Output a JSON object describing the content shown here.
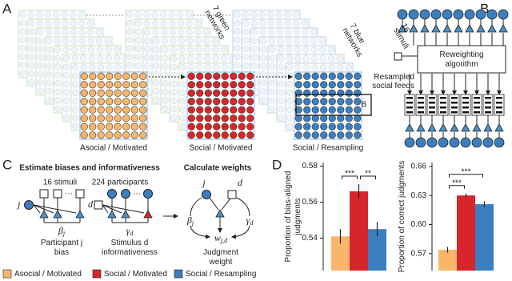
{
  "panel_labels": [
    "A",
    "B",
    "C",
    "D"
  ],
  "panel_a": {
    "conditions": [
      "Asocial / Motivated",
      "Social / Motivated",
      "Social / Resampling"
    ],
    "green_networks": [
      "7 green",
      "networks"
    ],
    "blue_networks": [
      "7 blue",
      "networks"
    ],
    "inset_label": "B"
  },
  "panel_b": {
    "stimuli": [
      "16",
      "stimuli"
    ],
    "algorithm": [
      "Reweighting",
      "algorithm"
    ],
    "feeds": [
      "Resampled",
      "social feeds"
    ]
  },
  "panel_c": {
    "headings": [
      "Estimate biases and informativeness",
      "Calculate weights"
    ],
    "counts": [
      "16 stimuli",
      "224 participants"
    ],
    "nodes": [
      "j",
      "d",
      "j",
      "d"
    ],
    "ellipsis": [
      "···",
      "···"
    ],
    "symbols": [
      {
        "base": "β",
        "sub": "j"
      },
      {
        "base": "γ",
        "sub": "d"
      },
      {
        "base": "β",
        "sub": "j"
      },
      {
        "base": "γ",
        "sub": "d"
      },
      {
        "base": "w",
        "sub": "j,d"
      }
    ],
    "captions": [
      [
        "Participant j",
        "bias"
      ],
      [
        "Stimulus d",
        "informativeness"
      ],
      [
        "Judgment",
        "weight"
      ]
    ]
  },
  "legend": [
    {
      "name": "Asocial / Motivated",
      "color": "#f9b66a"
    },
    {
      "name": "Social / Motivated",
      "color": "#d7262b"
    },
    {
      "name": "Social / Resampling",
      "color": "#3b7fbf"
    }
  ],
  "chart_data": [
    {
      "type": "bar",
      "ylabel": [
        "Proportion of bias-aligned",
        "judgments"
      ],
      "categories": [
        null,
        null,
        null
      ],
      "values": [
        0.541,
        0.566,
        0.545
      ],
      "errors": [
        0.004,
        0.004,
        0.004
      ],
      "colors": [
        "#f9b66a",
        "#d7262b",
        "#3b7fbf"
      ],
      "ylim": [
        0.522,
        0.582
      ],
      "yticks": [
        0.54,
        0.56,
        0.58
      ],
      "significance": [
        {
          "label": "***",
          "from": 0,
          "to": 1
        },
        {
          "label": "**",
          "from": 1,
          "to": 2
        }
      ]
    },
    {
      "type": "bar",
      "ylabel": [
        "Proportion of correct judgments"
      ],
      "categories": [
        null,
        null,
        null
      ],
      "values": [
        0.574,
        0.63,
        0.621
      ],
      "errors": [
        0.003,
        0.002,
        0.003
      ],
      "colors": [
        "#f9b66a",
        "#d7262b",
        "#3b7fbf"
      ],
      "ylim": [
        0.5525,
        0.664
      ],
      "yticks": [
        0.57,
        {
          "value": 0.6,
          "label": "0.60"
        },
        0.63,
        0.66
      ],
      "significance": [
        {
          "label": "***",
          "from": 0,
          "to": 1
        },
        {
          "label": "***",
          "from": 0,
          "to": 2
        }
      ]
    }
  ]
}
